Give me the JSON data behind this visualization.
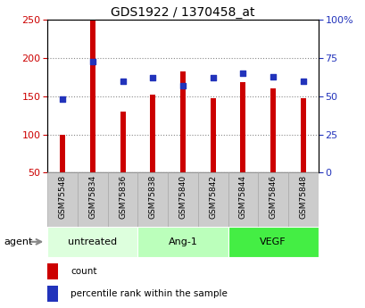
{
  "title": "GDS1922 / 1370458_at",
  "categories": [
    "GSM75548",
    "GSM75834",
    "GSM75836",
    "GSM75838",
    "GSM75840",
    "GSM75842",
    "GSM75844",
    "GSM75846",
    "GSM75848"
  ],
  "red_values": [
    100,
    250,
    130,
    152,
    182,
    148,
    168,
    160,
    148
  ],
  "blue_values": [
    48,
    73,
    60,
    62,
    57,
    62,
    65,
    63,
    60
  ],
  "left_ylim": [
    50,
    250
  ],
  "left_yticks": [
    50,
    100,
    150,
    200,
    250
  ],
  "right_ylim": [
    0,
    100
  ],
  "right_yticks": [
    0,
    25,
    50,
    75,
    100
  ],
  "right_yticklabels": [
    "0",
    "25",
    "50",
    "75",
    "100%"
  ],
  "red_color": "#cc0000",
  "blue_color": "#2233bb",
  "bar_bottom": 50,
  "bar_width": 0.18,
  "groups": [
    {
      "label": "untreated",
      "start": 0,
      "end": 3,
      "color": "#ddffdd"
    },
    {
      "label": "Ang-1",
      "start": 3,
      "end": 6,
      "color": "#bbffbb"
    },
    {
      "label": "VEGF",
      "start": 6,
      "end": 9,
      "color": "#44ee44"
    }
  ],
  "agent_label": "agent",
  "legend_count": "count",
  "legend_percentile": "percentile rank within the sample",
  "grid_color": "#888888",
  "tick_label_color_left": "#cc0000",
  "tick_label_color_right": "#2233bb",
  "xtick_bg_color": "#cccccc",
  "xtick_border_color": "#aaaaaa"
}
